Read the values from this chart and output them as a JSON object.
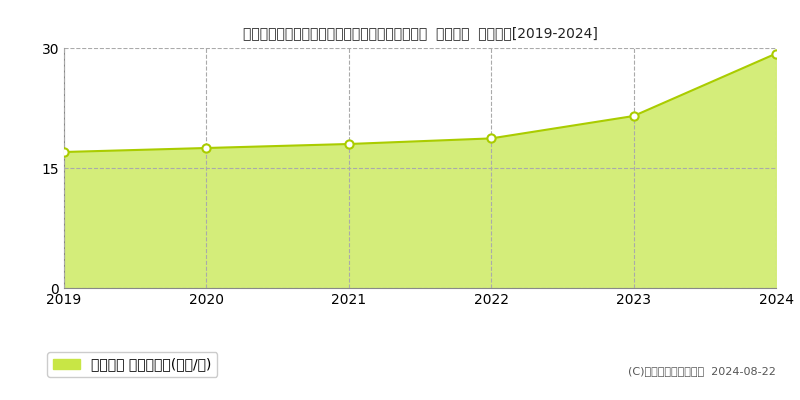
{
  "title": "北海道札幌市北区篠路３条４丁目３８番５７５外  地価公示  地価推移[2019-2024]",
  "years": [
    2019,
    2020,
    2021,
    2022,
    2023,
    2024
  ],
  "values": [
    17.0,
    17.5,
    18.0,
    18.7,
    21.5,
    29.3
  ],
  "ylim": [
    0,
    30
  ],
  "yticks": [
    0,
    15,
    30
  ],
  "line_color": "#aacc00",
  "fill_color": "#d4ed7a",
  "fill_alpha": 1.0,
  "marker_color": "white",
  "marker_edge_color": "#aacc00",
  "grid_color": "#aaaaaa",
  "background_color": "#ffffff",
  "legend_label": "地価公示 平均坪単価(万円/坪)",
  "legend_marker_color": "#c8e645",
  "copyright_text": "(C)土地価格ドットコム  2024-08-22",
  "title_fontsize": 12,
  "axis_fontsize": 10,
  "legend_fontsize": 9
}
